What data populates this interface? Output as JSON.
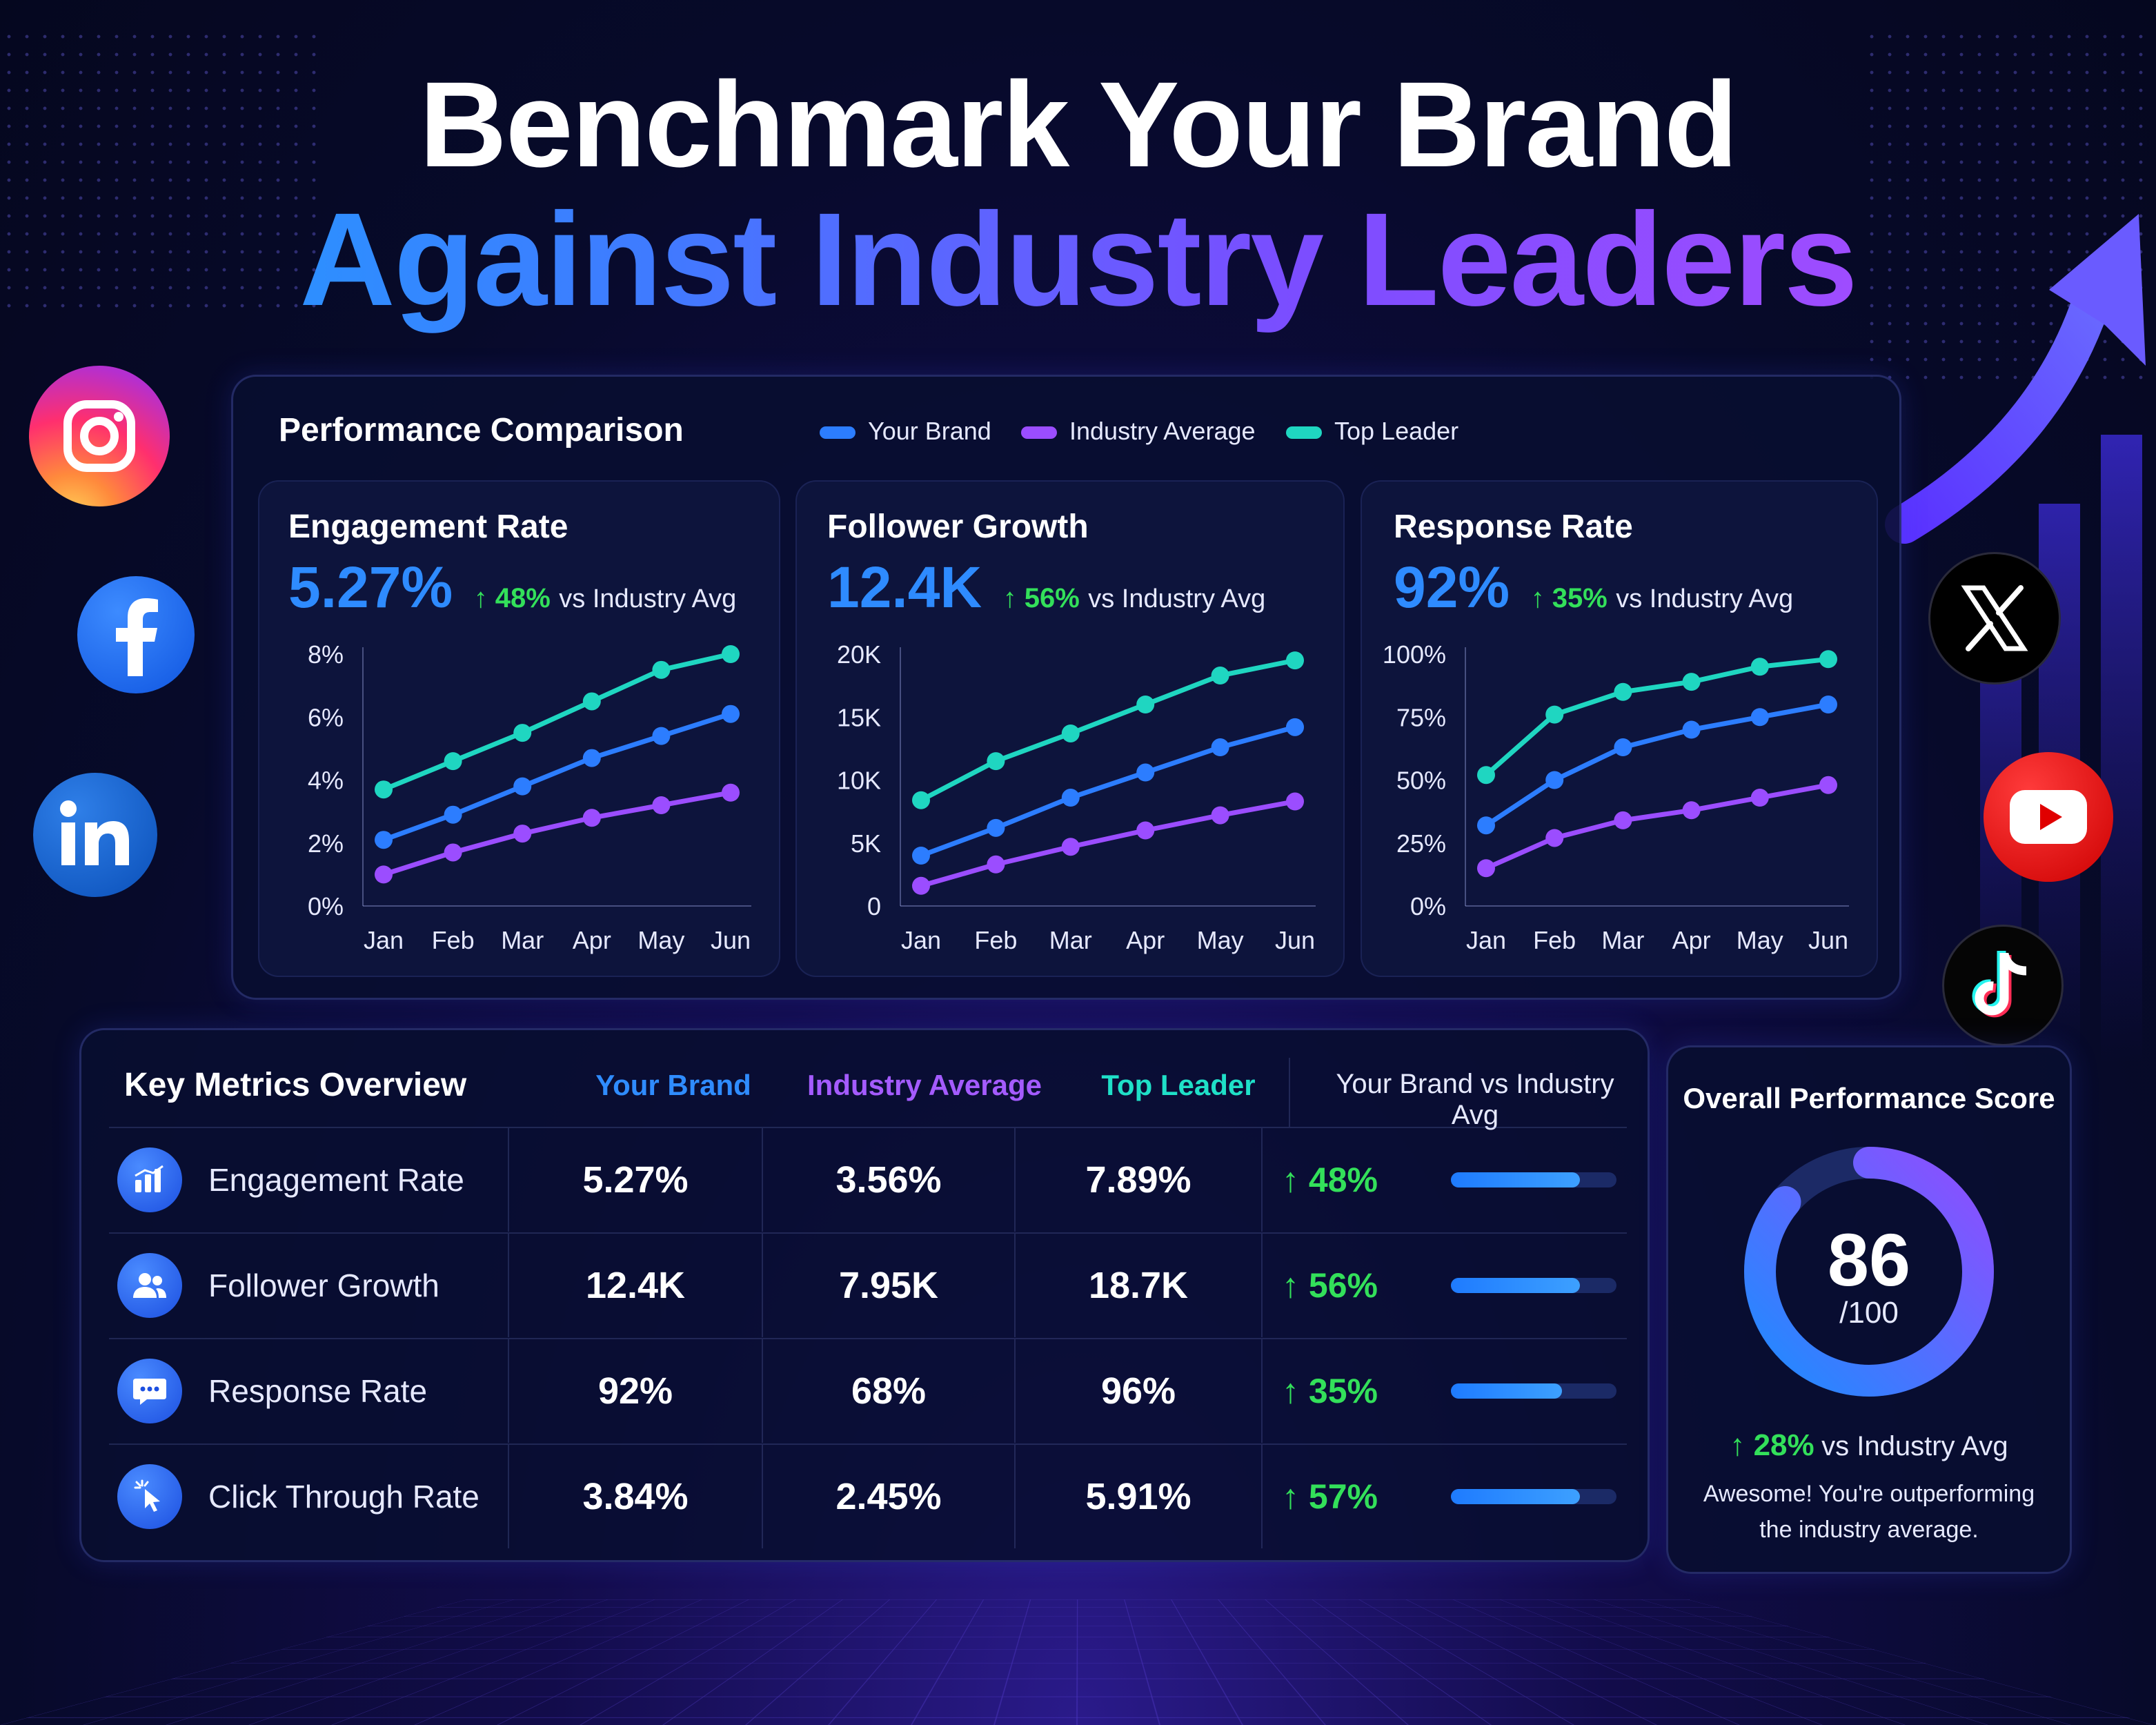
{
  "header": {
    "title_line1": "Benchmark Your Brand",
    "title_line2": "Against Industry Leaders"
  },
  "colors": {
    "your_brand": "#2c7dff",
    "industry_average": "#9b4dff",
    "top_leader": "#1fd6c1",
    "positive": "#33e05a"
  },
  "performance": {
    "title": "Performance Comparison",
    "legend": [
      "Your Brand",
      "Industry Average",
      "Top Leader"
    ]
  },
  "chart_data": [
    {
      "type": "line",
      "title": "Engagement Rate",
      "headline": "5.27%",
      "delta": "↑ 48%",
      "delta_note": "vs Industry Avg",
      "categories": [
        "Jan",
        "Feb",
        "Mar",
        "Apr",
        "May",
        "Jun"
      ],
      "ylim": [
        0,
        8
      ],
      "yticks": [
        "0%",
        "2%",
        "4%",
        "6%",
        "8%"
      ],
      "series": [
        {
          "name": "Your Brand",
          "values": [
            2.1,
            2.9,
            3.8,
            4.7,
            5.4,
            6.1
          ]
        },
        {
          "name": "Industry Average",
          "values": [
            1.0,
            1.7,
            2.3,
            2.8,
            3.2,
            3.6
          ]
        },
        {
          "name": "Top Leader",
          "values": [
            3.7,
            4.6,
            5.5,
            6.5,
            7.5,
            8.0
          ]
        }
      ]
    },
    {
      "type": "line",
      "title": "Follower Growth",
      "headline": "12.4K",
      "delta": "↑ 56%",
      "delta_note": "vs Industry Avg",
      "categories": [
        "Jan",
        "Feb",
        "Mar",
        "Apr",
        "May",
        "Jun"
      ],
      "ylim": [
        0,
        20000
      ],
      "yticks": [
        "0",
        "5K",
        "10K",
        "15K",
        "20K"
      ],
      "series": [
        {
          "name": "Your Brand",
          "values": [
            4000,
            6200,
            8600,
            10600,
            12600,
            14200
          ]
        },
        {
          "name": "Industry Average",
          "values": [
            1600,
            3300,
            4700,
            6000,
            7200,
            8300
          ]
        },
        {
          "name": "Top Leader",
          "values": [
            8400,
            11500,
            13700,
            16000,
            18300,
            19500
          ]
        }
      ]
    },
    {
      "type": "line",
      "title": "Response Rate",
      "headline": "92%",
      "delta": "↑ 35%",
      "delta_note": "vs Industry Avg",
      "categories": [
        "Jan",
        "Feb",
        "Mar",
        "Apr",
        "May",
        "Jun"
      ],
      "ylim": [
        0,
        100
      ],
      "yticks": [
        "0%",
        "25%",
        "50%",
        "75%",
        "100%"
      ],
      "series": [
        {
          "name": "Your Brand",
          "values": [
            32,
            50,
            63,
            70,
            75,
            80
          ]
        },
        {
          "name": "Industry Average",
          "values": [
            15,
            27,
            34,
            38,
            43,
            48
          ]
        },
        {
          "name": "Top Leader",
          "values": [
            52,
            76,
            85,
            89,
            95,
            98
          ]
        }
      ]
    }
  ],
  "metrics": {
    "title": "Key Metrics Overview",
    "columns": [
      "Your Brand",
      "Industry Average",
      "Top Leader",
      "Your Brand vs Industry Avg"
    ],
    "rows": [
      {
        "icon": "bar-chart-icon",
        "name": "Engagement Rate",
        "brand": "5.27%",
        "industry": "3.56%",
        "leader": "7.89%",
        "delta": "↑ 48%",
        "bar": 0.78
      },
      {
        "icon": "users-icon",
        "name": "Follower Growth",
        "brand": "12.4K",
        "industry": "7.95K",
        "leader": "18.7K",
        "delta": "↑ 56%",
        "bar": 0.78
      },
      {
        "icon": "chat-icon",
        "name": "Response Rate",
        "brand": "92%",
        "industry": "68%",
        "leader": "96%",
        "delta": "↑ 35%",
        "bar": 0.67
      },
      {
        "icon": "cursor-click-icon",
        "name": "Click Through Rate",
        "brand": "3.84%",
        "industry": "2.45%",
        "leader": "5.91%",
        "delta": "↑ 57%",
        "bar": 0.78
      }
    ]
  },
  "score": {
    "title": "Overall Performance Score",
    "value": "86",
    "out_of": "/100",
    "fraction": 0.86,
    "delta": "↑ 28%",
    "delta_note": "vs Industry Avg",
    "message_line1": "Awesome! You're outperforming",
    "message_line2": "the industry average."
  },
  "socials": [
    "instagram-icon",
    "facebook-icon",
    "linkedin-icon",
    "x-icon",
    "youtube-icon",
    "tiktok-icon"
  ]
}
